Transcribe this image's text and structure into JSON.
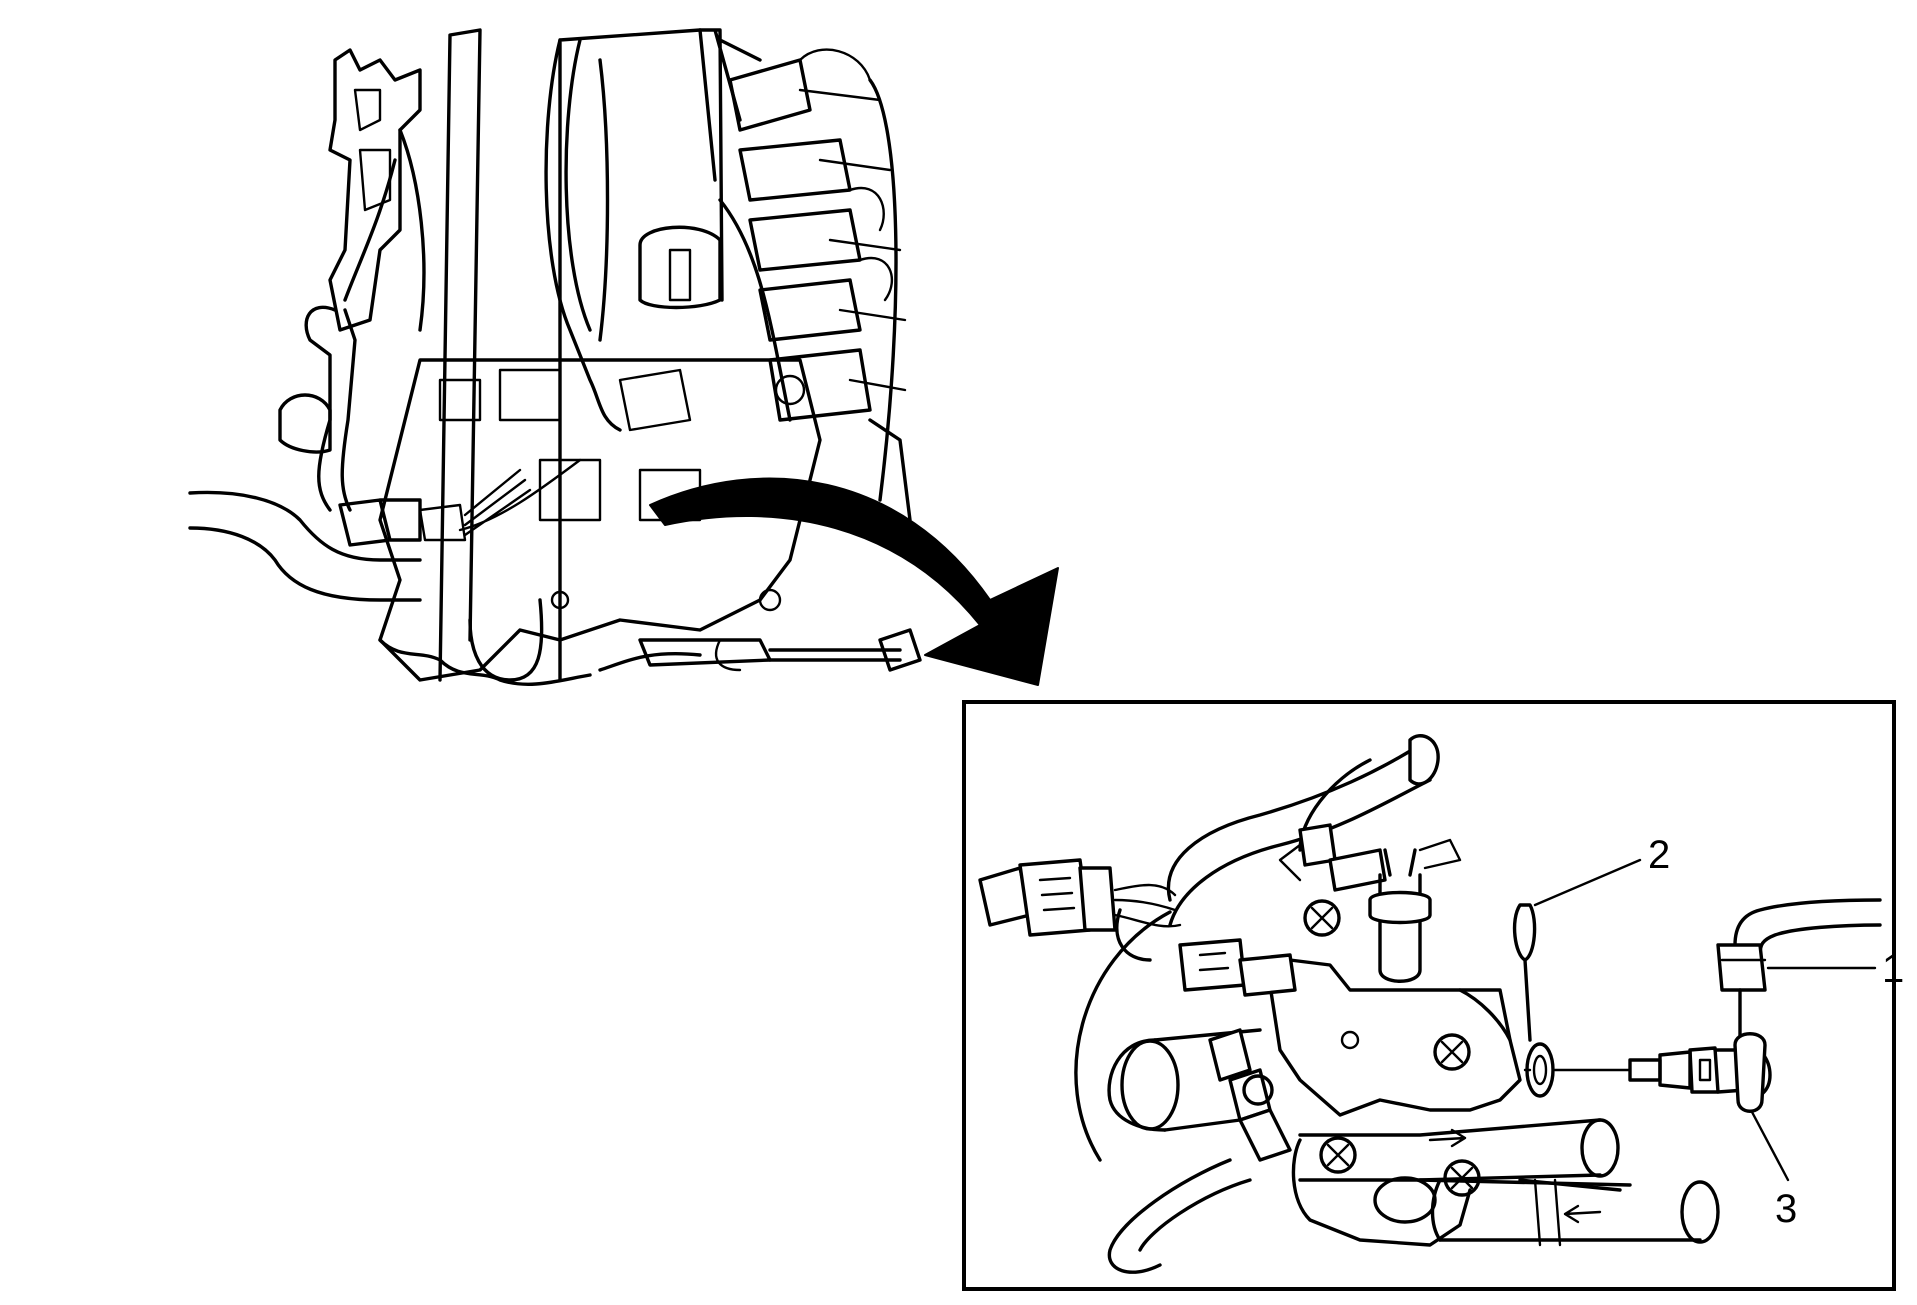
{
  "callouts": [
    {
      "id": "1",
      "label": "1"
    },
    {
      "id": "2",
      "label": "2"
    },
    {
      "id": "3",
      "label": "3"
    }
  ],
  "colors": {
    "line": "#000000",
    "background": "#ffffff"
  },
  "icons": [
    "curved-arrow-icon",
    "flow-arrow-icon"
  ]
}
